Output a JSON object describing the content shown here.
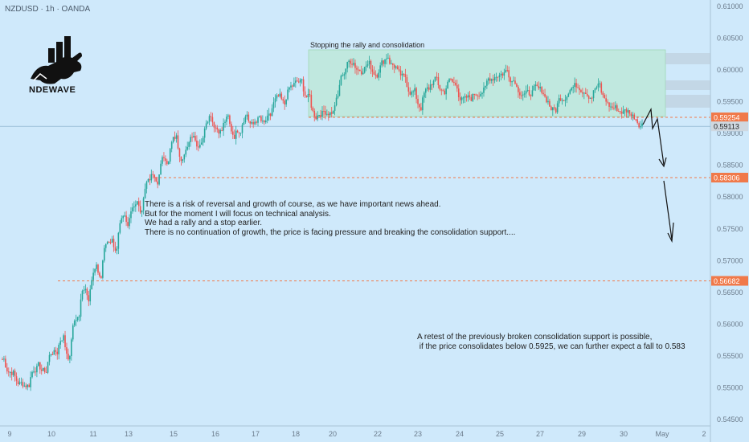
{
  "header": {
    "symbol_text": "NZDUSD · 1h · OANDA"
  },
  "logo": {
    "name": "NDEWAVE"
  },
  "colors": {
    "background": "#cfe9fb",
    "up": "#26a69a",
    "down": "#ef5350",
    "level_line": "#f0794a",
    "axis_text": "#6b7b8b",
    "box_fill": "#b4e7c8"
  },
  "chart_data": {
    "type": "candlestick",
    "title": "",
    "ylim": [
      0.544,
      0.611
    ],
    "yticks": [
      0.545,
      0.55,
      0.555,
      0.56,
      0.565,
      0.57,
      0.575,
      0.58,
      0.585,
      0.59,
      0.595,
      0.6,
      0.605,
      0.61
    ],
    "ytick_labels": [
      "0.54500",
      "0.55000",
      "0.55500",
      "0.56000",
      "0.56500",
      "0.57000",
      "0.57500",
      "0.58000",
      "0.58500",
      "0.59000",
      "0.59500",
      "0.60000",
      "0.60500",
      "0.61000"
    ],
    "xticks": [
      "9",
      "10",
      "11",
      "13",
      "15",
      "16",
      "17",
      "18",
      "20",
      "22",
      "23",
      "24",
      "25",
      "27",
      "29",
      "30",
      "May",
      "2"
    ],
    "levels": [
      {
        "value": 0.59254,
        "label": "0.59254",
        "style": "dashed"
      },
      {
        "value": 0.58306,
        "label": "0.58306",
        "style": "dashed"
      },
      {
        "value": 0.56682,
        "label": "0.56682",
        "style": "dashed"
      }
    ],
    "last_price": {
      "value": 0.59113,
      "label": "0.59113"
    },
    "close_path": [
      [
        0.5545,
        2
      ],
      [
        0.5525,
        6
      ],
      [
        0.5505,
        10
      ],
      [
        0.5535,
        6
      ],
      [
        0.5525,
        5
      ],
      [
        0.556,
        4
      ],
      [
        0.5555,
        3
      ],
      [
        0.5585,
        4
      ],
      [
        0.5545,
        4
      ],
      [
        0.5615,
        6
      ],
      [
        0.5665,
        4
      ],
      [
        0.5635,
        2
      ],
      [
        0.569,
        5
      ],
      [
        0.567,
        3
      ],
      [
        0.5735,
        7
      ],
      [
        0.5715,
        3
      ],
      [
        0.5765,
        5
      ],
      [
        0.5745,
        2
      ],
      [
        0.5795,
        6
      ],
      [
        0.577,
        3
      ],
      [
        0.5835,
        7
      ],
      [
        0.5815,
        3
      ],
      [
        0.5865,
        5
      ],
      [
        0.5855,
        2
      ],
      [
        0.5895,
        5
      ],
      [
        0.586,
        3
      ],
      [
        0.5875,
        4
      ],
      [
        0.5905,
        4
      ],
      [
        0.588,
        3
      ],
      [
        0.5895,
        3
      ],
      [
        0.5935,
        5
      ],
      [
        0.591,
        3
      ],
      [
        0.5905,
        4
      ],
      [
        0.5925,
        4
      ],
      [
        0.5895,
        4
      ],
      [
        0.591,
        4
      ],
      [
        0.5935,
        4
      ],
      [
        0.591,
        4
      ],
      [
        0.5925,
        4
      ],
      [
        0.591,
        3
      ],
      [
        0.5925,
        4
      ],
      [
        0.5955,
        6
      ],
      [
        0.594,
        3
      ],
      [
        0.5975,
        5
      ],
      [
        0.598,
        6
      ],
      [
        0.5955,
        5
      ],
      [
        0.5925,
        4
      ],
      [
        0.5935,
        5
      ],
      [
        0.5935,
        6
      ],
      [
        0.596,
        3
      ],
      [
        0.6,
        4
      ],
      [
        0.6015,
        6
      ],
      [
        0.6,
        5
      ],
      [
        0.601,
        5
      ],
      [
        0.5995,
        5
      ],
      [
        0.6015,
        4
      ],
      [
        0.6025,
        3
      ],
      [
        0.6005,
        5
      ],
      [
        0.5985,
        6
      ],
      [
        0.5965,
        6
      ],
      [
        0.594,
        4
      ],
      [
        0.597,
        5
      ],
      [
        0.5985,
        5
      ],
      [
        0.5965,
        5
      ],
      [
        0.5985,
        4
      ],
      [
        0.5975,
        4
      ],
      [
        0.595,
        5
      ],
      [
        0.5955,
        4
      ],
      [
        0.5965,
        4
      ],
      [
        0.597,
        5
      ],
      [
        0.599,
        5
      ],
      [
        0.5995,
        6
      ],
      [
        0.6,
        3
      ],
      [
        0.5985,
        5
      ],
      [
        0.5965,
        5
      ],
      [
        0.596,
        4
      ],
      [
        0.597,
        4
      ],
      [
        0.5965,
        5
      ],
      [
        0.595,
        3
      ],
      [
        0.5935,
        5
      ],
      [
        0.596,
        6
      ],
      [
        0.5975,
        4
      ],
      [
        0.5975,
        5
      ],
      [
        0.597,
        4
      ],
      [
        0.596,
        4
      ],
      [
        0.5975,
        5
      ],
      [
        0.595,
        4
      ],
      [
        0.594,
        6
      ],
      [
        0.5935,
        4
      ],
      [
        0.5935,
        5
      ],
      [
        0.5925,
        4
      ],
      [
        0.5915,
        4
      ]
    ]
  },
  "annotations": {
    "box_label": "Stopping the rally and consolidation",
    "note_main": "There is a risk of reversal and growth of course, as we have important news ahead.\nBut for the moment I will focus on technical analysis.\nWe had a rally and a stop earlier.\nThere is no continuation of growth, the price is facing pressure and breaking the consolidation support....",
    "note_retest": "A retest of the previously broken consolidation support is possible,\n if the price consolidates below 0.5925, we can further expect a fall to 0.583"
  }
}
